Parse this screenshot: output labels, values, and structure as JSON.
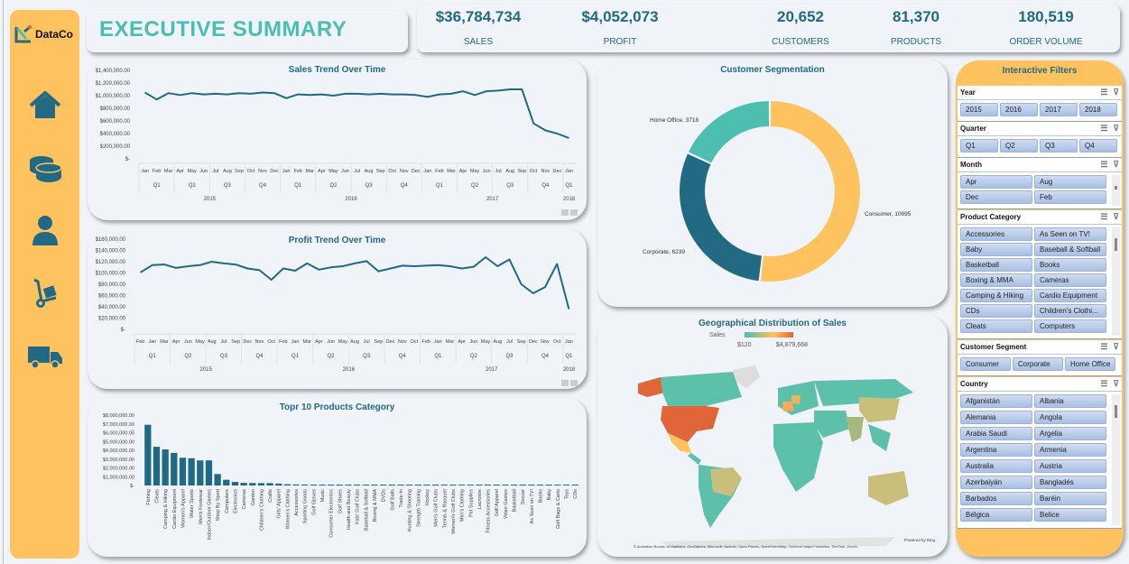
{
  "app": {
    "logo": "DataCo",
    "title": "EXECUTIVE SUMMARY"
  },
  "nav": [
    {
      "icon": "home-icon"
    },
    {
      "icon": "coins-icon"
    },
    {
      "icon": "user-icon"
    },
    {
      "icon": "hand-truck-icon"
    },
    {
      "icon": "truck-icon"
    }
  ],
  "kpis": [
    {
      "value": "$36,784,734",
      "label": "SALES"
    },
    {
      "value": "$4,052,073",
      "label": "PROFIT"
    },
    {
      "value": "20,652",
      "label": "CUSTOMERS"
    },
    {
      "value": "81,370",
      "label": "PRODUCTS"
    },
    {
      "value": "180,519",
      "label": "ORDER VOLUME"
    }
  ],
  "chart_data": [
    {
      "id": "sales",
      "type": "line",
      "title": "Sales Trend Over Time",
      "ylim": [
        0,
        1400000
      ],
      "yticks": [
        "$1,400,000.00",
        "$1,200,000.00",
        "$1,000,000.00",
        "$800,000.00",
        "$600,000.00",
        "$400,000.00",
        "$200,000.00",
        "$-"
      ],
      "months": [
        "Jan",
        "Feb",
        "Mar",
        "Apr",
        "May",
        "Jun",
        "Jul",
        "Aug",
        "Sep",
        "Oct",
        "Nov",
        "Dec",
        "Jan",
        "Feb",
        "Mar",
        "Apr",
        "May",
        "Jun",
        "Jul",
        "Aug",
        "Sep",
        "Oct",
        "Nov",
        "Dec",
        "Jan",
        "Feb",
        "Mar",
        "Apr",
        "May",
        "Jun",
        "Jul",
        "Aug",
        "Sep",
        "Oct",
        "Nov",
        "Dec",
        "Jan"
      ],
      "quarters": [
        "Q1",
        "Q2",
        "Q3",
        "Q4",
        "Q1",
        "Q2",
        "Q3",
        "Q4",
        "Q1",
        "Q2",
        "Q3",
        "Q4",
        "Q1"
      ],
      "years": [
        "2015",
        "2016",
        "2017",
        "2018"
      ],
      "values": [
        1050000,
        940000,
        1040000,
        1010000,
        1040000,
        1020000,
        1030000,
        1020000,
        1040000,
        1030000,
        1050000,
        1040000,
        960000,
        1020000,
        1010000,
        1020000,
        1000000,
        1030000,
        1030000,
        1020000,
        1030000,
        1020000,
        1020000,
        1010000,
        980000,
        1020000,
        1030000,
        1070000,
        1010000,
        1070000,
        1080000,
        1100000,
        1100000,
        560000,
        450000,
        400000,
        330000
      ]
    },
    {
      "id": "profit",
      "type": "line",
      "title": "Profit Trend Over Time",
      "ylim": [
        0,
        160000
      ],
      "yticks": [
        "$160,000.00",
        "$140,000.00",
        "$120,000.00",
        "$100,000.00",
        "$80,000.00",
        "$60,000.00",
        "$40,000.00",
        "$20,000.00",
        "$-"
      ],
      "months": [
        "Feb",
        "Jan",
        "Mar",
        "Apr",
        "Jun",
        "May",
        "Aug",
        "Jul",
        "Sep",
        "Dec",
        "Nov",
        "Oct",
        "Feb",
        "Jan",
        "Mar",
        "Apr",
        "Jun",
        "May",
        "Aug",
        "Jul",
        "Sep",
        "Dec",
        "Nov",
        "Oct",
        "Feb",
        "Jan",
        "Mar",
        "Apr",
        "Jun",
        "May",
        "Aug",
        "Jul",
        "Sep",
        "Dec",
        "Nov",
        "Oct",
        "Jan"
      ],
      "quarters": [
        "Q1",
        "Q2",
        "Q3",
        "Q4",
        "Q1",
        "Q2",
        "Q3",
        "Q4",
        "Q1",
        "Q2",
        "Q3",
        "Q4",
        "Q1"
      ],
      "years": [
        "2015",
        "2016",
        "2017",
        "2018"
      ],
      "values": [
        101000,
        114000,
        115000,
        109000,
        112000,
        114000,
        120000,
        117000,
        115000,
        108000,
        105000,
        88000,
        108000,
        104000,
        117000,
        106000,
        110000,
        112000,
        117000,
        121000,
        103000,
        108000,
        113000,
        112000,
        113000,
        114000,
        112000,
        108000,
        111000,
        128000,
        112000,
        124000,
        80000,
        64000,
        75000,
        116000,
        36000
      ]
    },
    {
      "id": "products",
      "type": "bar",
      "title": "Topr 10 Products Category",
      "ylim": [
        0,
        8000000
      ],
      "yticks": [
        "$8,000,000.00",
        "$7,000,000.00",
        "$6,000,000.00",
        "$5,000,000.00",
        "$4,000,000.00",
        "$3,000,000.00",
        "$2,000,000.00",
        "$1,000,000.00",
        "$-"
      ],
      "categories": [
        "Fishing",
        "Cleats",
        "Camping & Hiking",
        "Cardio Equipment",
        "Women's Apparel",
        "Water Sports",
        "Men's Footwear",
        "Indoor/Outdoor Games",
        "Shop By Sport",
        "Computers",
        "Electronics",
        "Cameras",
        "Garden",
        "Children's Clothing",
        "Crafts",
        "Girls' Apparel",
        "Women's Clothing",
        "Accessories",
        "Sporting Goods",
        "Golf Gloves",
        "Music",
        "Consumer Electronics",
        "Golf Shoes",
        "Health and Beauty",
        "Kids' Golf Clubs",
        "Baseball & Softball",
        "Boxing & MMA",
        "DVDs",
        "Golf Balls",
        "Trade-In",
        "Hunting & Shooting",
        "Strength Training",
        "Hockey",
        "Men's Golf Clubs",
        "Tennis & Racquet",
        "Women's Golf Clubs",
        "Men's Clothing",
        "Pet Supplies",
        "Lacrosse",
        "Fitness Accessories",
        "Golf Apparel",
        "Video Games",
        "Basketball",
        "Soccer",
        "As Seen on TV!",
        "Books",
        "Baby",
        "Golf Bags & Carts",
        "Toys",
        "CDs"
      ],
      "values": [
        6900000,
        4400000,
        4100000,
        3700000,
        3150000,
        3100000,
        2850000,
        2850000,
        1300000,
        650000,
        400000,
        300000,
        280000,
        270000,
        270000,
        220000,
        140000,
        120000,
        110000,
        100000,
        90000,
        80000,
        70000,
        65000,
        60000,
        55000,
        50000,
        45000,
        40000,
        38000,
        36000,
        34000,
        32000,
        30000,
        28000,
        26000,
        24000,
        22000,
        20000,
        18000,
        16000,
        14000,
        12000,
        10000,
        9000,
        8000,
        7000,
        6000,
        5000,
        4000
      ]
    },
    {
      "id": "segments",
      "type": "pie",
      "title": "Customer Segmentation",
      "slices": [
        {
          "label": "Consumer",
          "value": 10695,
          "color": "#fec25f"
        },
        {
          "label": "Corporate",
          "value": 6239,
          "color": "#226a83"
        },
        {
          "label": "Home Office",
          "value": 3718,
          "color": "#4dbfb1"
        }
      ]
    },
    {
      "id": "geo",
      "type": "heatmap",
      "title": "Geographical Distribution of Sales",
      "legend_label": "Sales",
      "min": "$120",
      "max": "$4,879,668",
      "credit1": "Powered by Bing",
      "credit2": "© Australian Bureau of Statistics, GeoNames, Microsoft, Navinfo, Open Places, OpenStreetMap, Overture Maps Fundation, TomTom, Zenrin"
    }
  ],
  "filters": {
    "title": "Interactive Filters",
    "year": {
      "label": "Year",
      "items": [
        "2015",
        "2016",
        "2017",
        "2018"
      ]
    },
    "quarter": {
      "label": "Quarter",
      "items": [
        "Q1",
        "Q2",
        "Q3",
        "Q4"
      ]
    },
    "month": {
      "label": "Month",
      "items": [
        "Apr",
        "Aug",
        "Dec",
        "Feb"
      ]
    },
    "category": {
      "label": "Product Category",
      "items": [
        "Accessories",
        "As Seen on TV!",
        "Baby",
        "Baseball & Softball",
        "Basketball",
        "Books",
        "Boxing & MMA",
        "Cameras",
        "Camping & Hiking",
        "Cardio Equipment",
        "CDs",
        "Children's Clothi...",
        "Cleats",
        "Computers"
      ]
    },
    "segment": {
      "label": "Customer Segment",
      "items": [
        "Consumer",
        "Corporate",
        "Home Office"
      ]
    },
    "country": {
      "label": "Country",
      "items": [
        "Afganistán",
        "Albania",
        "Alemania",
        "Angola",
        "Arabia Saudí",
        "Argelia",
        "Argentina",
        "Armenia",
        "Australia",
        "Austria",
        "Azerbaiyán",
        "Bangladés",
        "Barbados",
        "Baréin",
        "Bélgica",
        "Belice"
      ]
    }
  }
}
